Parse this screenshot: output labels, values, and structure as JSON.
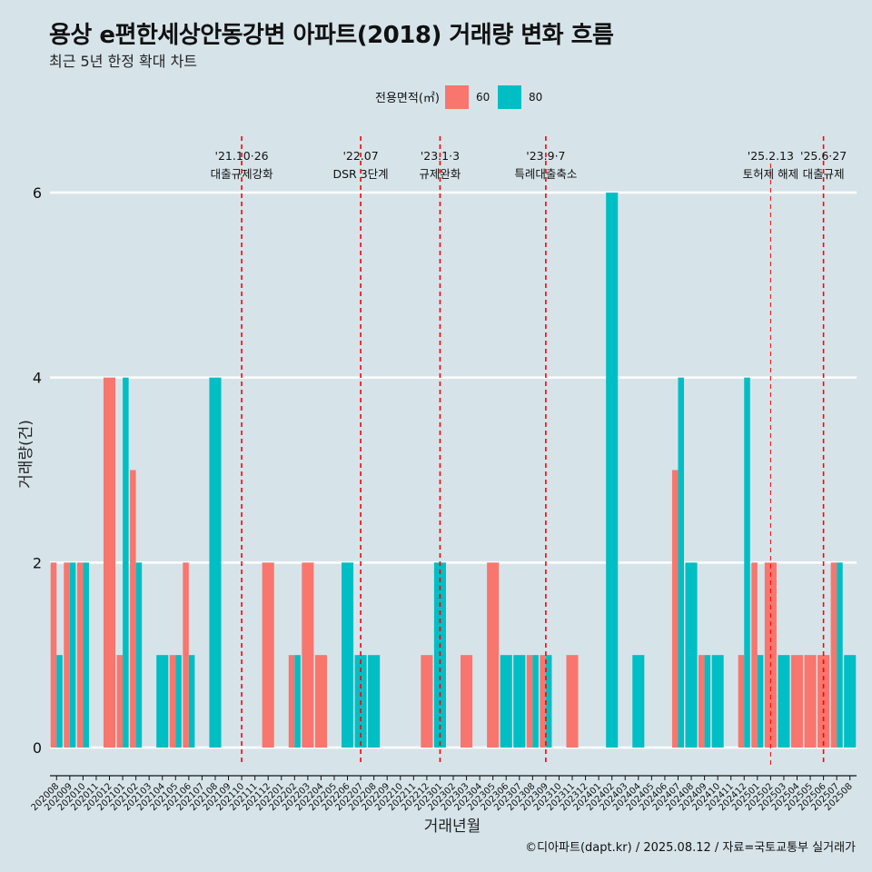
{
  "title": "용상 e편한세상안동강변 아파트(2018) 거래량 변화 흐름",
  "subtitle": "최근 5년 한정 확대 차트",
  "caption": "©디아파트(dapt.kr) / 2025.08.12 / 자료=국토교통부 실거래가",
  "colors": {
    "s60": "#f8766d",
    "s80": "#00bfc4",
    "event": "#ff0000",
    "grid": "#ffffff"
  },
  "chart_data": {
    "type": "bar",
    "xlabel": "거래년월",
    "ylabel": "거래량(건)",
    "ylim": [
      0,
      6
    ],
    "yticks": [
      0,
      2,
      4,
      6
    ],
    "legend": {
      "title": "전용면적(㎡)",
      "position": "top"
    },
    "categories": [
      "202008",
      "202009",
      "202010",
      "202011",
      "202012",
      "202101",
      "202102",
      "202103",
      "202104",
      "202105",
      "202106",
      "202107",
      "202108",
      "202109",
      "202110",
      "202111",
      "202112",
      "202201",
      "202202",
      "202203",
      "202204",
      "202205",
      "202206",
      "202207",
      "202208",
      "202209",
      "202210",
      "202211",
      "202212",
      "202301",
      "202302",
      "202303",
      "202304",
      "202305",
      "202306",
      "202307",
      "202308",
      "202309",
      "202310",
      "202311",
      "202312",
      "202401",
      "202402",
      "202403",
      "202404",
      "202405",
      "202406",
      "202407",
      "202408",
      "202409",
      "202410",
      "202411",
      "202412",
      "202501",
      "202502",
      "202503",
      "202504",
      "202505",
      "202506",
      "202507",
      "202508"
    ],
    "series": [
      {
        "name": "60",
        "values": [
          2,
          2,
          2,
          0,
          4,
          1,
          3,
          0,
          0,
          1,
          2,
          0,
          0,
          0,
          0,
          0,
          2,
          0,
          1,
          2,
          1,
          0,
          0,
          0,
          0,
          0,
          0,
          0,
          1,
          0,
          0,
          1,
          0,
          2,
          0,
          0,
          1,
          1,
          0,
          1,
          0,
          0,
          0,
          0,
          0,
          0,
          0,
          3,
          0,
          1,
          0,
          0,
          1,
          2,
          2,
          0,
          1,
          1,
          1,
          2,
          0
        ]
      },
      {
        "name": "80",
        "values": [
          1,
          2,
          2,
          0,
          0,
          4,
          2,
          0,
          1,
          1,
          1,
          0,
          4,
          0,
          0,
          0,
          0,
          0,
          1,
          0,
          0,
          0,
          2,
          1,
          1,
          0,
          0,
          0,
          0,
          2,
          0,
          0,
          0,
          0,
          1,
          1,
          1,
          1,
          0,
          0,
          0,
          0,
          6,
          0,
          1,
          0,
          0,
          4,
          2,
          1,
          1,
          0,
          4,
          1,
          0,
          1,
          0,
          0,
          0,
          2,
          1
        ]
      }
    ],
    "events": [
      {
        "date_label": "'21.10·26",
        "text": "대출규제강화",
        "category": "202110",
        "style": "long"
      },
      {
        "date_label": "'22.07",
        "text": "DSR 3단계",
        "category": "202207",
        "style": "long"
      },
      {
        "date_label": "'23.1·3",
        "text": "규제완화",
        "category": "202301",
        "style": "long"
      },
      {
        "date_label": "'23.9·7",
        "text": "특례대출축소",
        "category": "202309",
        "style": "long"
      },
      {
        "date_label": "'25.2.13",
        "text": "토허제 해제",
        "category": "202502",
        "style": "short"
      },
      {
        "date_label": "'25.6·27",
        "text": "대출규제",
        "category": "202506",
        "style": "long"
      }
    ]
  }
}
